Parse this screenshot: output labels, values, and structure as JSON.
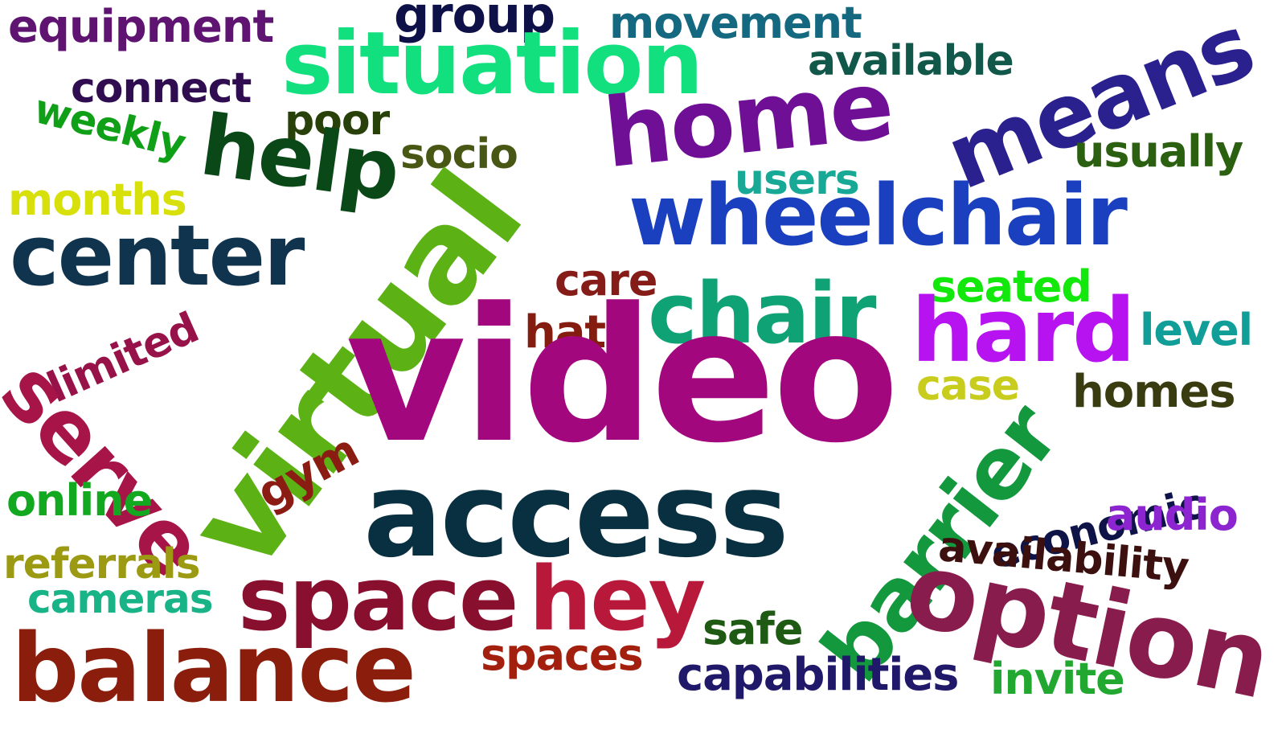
{
  "words": [
    {
      "id": "video",
      "text": "video",
      "color": "#a3077e"
    },
    {
      "id": "access",
      "text": "access",
      "color": "#083040"
    },
    {
      "id": "virtual",
      "text": "virtual",
      "color": "#5cb214"
    },
    {
      "id": "situation",
      "text": "situation",
      "color": "#12e07e"
    },
    {
      "id": "wheelchair",
      "text": "wheelchair",
      "color": "#1a40c0"
    },
    {
      "id": "home",
      "text": "home",
      "color": "#6e0f96"
    },
    {
      "id": "means",
      "text": "means",
      "color": "#2a208e"
    },
    {
      "id": "chair",
      "text": "chair",
      "color": "#0ea275"
    },
    {
      "id": "hard",
      "text": "hard",
      "color": "#b712f0"
    },
    {
      "id": "barrier",
      "text": "barrier",
      "color": "#13983e"
    },
    {
      "id": "option",
      "text": "option",
      "color": "#881c4c"
    },
    {
      "id": "serve",
      "text": "serve",
      "color": "#a61448"
    },
    {
      "id": "space",
      "text": "space",
      "color": "#88102e"
    },
    {
      "id": "hey",
      "text": "hey",
      "color": "#b8183a"
    },
    {
      "id": "balance",
      "text": "balance",
      "color": "#8a1d0c"
    },
    {
      "id": "center",
      "text": "center",
      "color": "#10344e"
    },
    {
      "id": "help",
      "text": "help",
      "color": "#0a4818"
    },
    {
      "id": "equipment",
      "text": "equipment",
      "color": "#5e1470"
    },
    {
      "id": "group",
      "text": "group",
      "color": "#0e1048"
    },
    {
      "id": "movement",
      "text": "movement",
      "color": "#146880"
    },
    {
      "id": "available",
      "text": "available",
      "color": "#12584a"
    },
    {
      "id": "connect",
      "text": "connect",
      "color": "#300c50"
    },
    {
      "id": "weekly",
      "text": "weekly",
      "color": "#10a018"
    },
    {
      "id": "poor",
      "text": "poor",
      "color": "#28400a"
    },
    {
      "id": "socio",
      "text": "socio",
      "color": "#485814"
    },
    {
      "id": "usually",
      "text": "usually",
      "color": "#2a6010"
    },
    {
      "id": "users",
      "text": "users",
      "color": "#18a896"
    },
    {
      "id": "months",
      "text": "months",
      "color": "#d8e00c"
    },
    {
      "id": "care",
      "text": "care",
      "color": "#861c18"
    },
    {
      "id": "seated",
      "text": "seated",
      "color": "#12e80c"
    },
    {
      "id": "limited",
      "text": "limited",
      "color": "#98124a"
    },
    {
      "id": "hat",
      "text": "hat",
      "color": "#841c10"
    },
    {
      "id": "level",
      "text": "level",
      "color": "#129e98"
    },
    {
      "id": "case",
      "text": "case",
      "color": "#c8cc1c"
    },
    {
      "id": "homes",
      "text": "homes",
      "color": "#383c10"
    },
    {
      "id": "gym",
      "text": "gym",
      "color": "#8a1c14"
    },
    {
      "id": "economic",
      "text": "economic",
      "color": "#0e1448"
    },
    {
      "id": "online",
      "text": "online",
      "color": "#12a820"
    },
    {
      "id": "audio",
      "text": "audio",
      "color": "#8c24d0"
    },
    {
      "id": "referrals",
      "text": "referrals",
      "color": "#9c9a12"
    },
    {
      "id": "availability",
      "text": "availability",
      "color": "#3c100e"
    },
    {
      "id": "cameras",
      "text": "cameras",
      "color": "#18b488"
    },
    {
      "id": "safe",
      "text": "safe",
      "color": "#1e5a14"
    },
    {
      "id": "spaces",
      "text": "spaces",
      "color": "#a4200e"
    },
    {
      "id": "capabilities",
      "text": "capabilities",
      "color": "#201868"
    },
    {
      "id": "invite",
      "text": "invite",
      "color": "#22a830"
    }
  ]
}
